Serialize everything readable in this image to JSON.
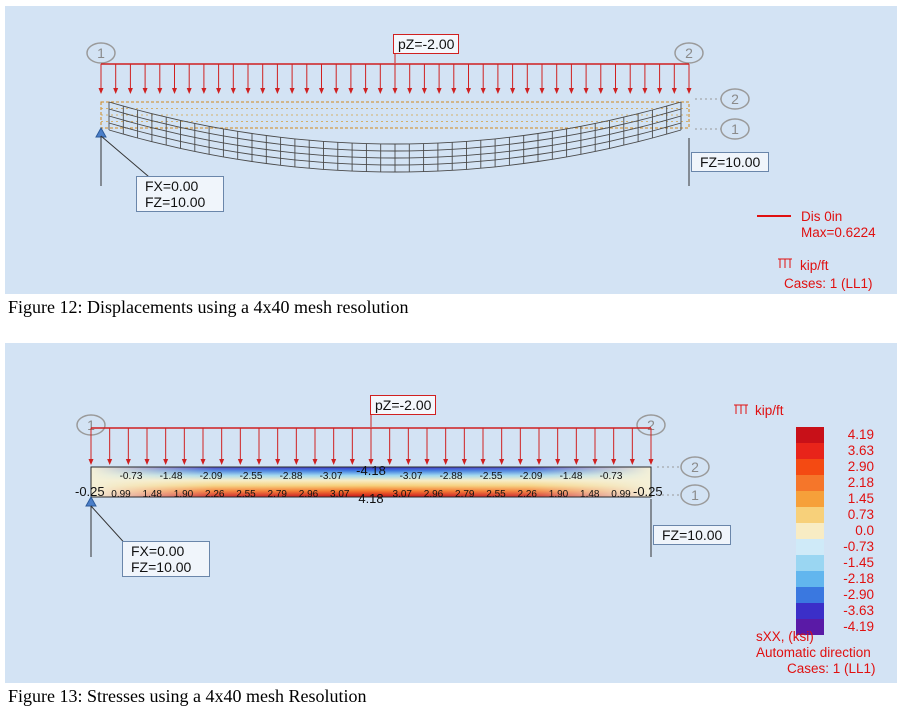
{
  "figure12": {
    "caption": "Figure 12: Displacements using a 4x40 mesh resolution",
    "load_label": "pZ=-2.00",
    "support_left": {
      "fx": "FX=0.00",
      "fz": "FZ=10.00"
    },
    "support_right": {
      "fz": "FZ=10.00"
    },
    "nodes": {
      "left": "1",
      "right": "2",
      "side_top": "2",
      "side_bottom": "1"
    },
    "legend": {
      "name": "Dis  0in",
      "max": "Max=0.6224",
      "unit": "kip/ft",
      "cases": "Cases: 1 (LL1)"
    }
  },
  "figure13": {
    "caption": "Figure 13: Stresses using a 4x40 mesh Resolution",
    "load_label": "pZ=-2.00",
    "unit": "kip/ft",
    "support_left": {
      "fx": "FX=0.00",
      "fz": "FZ=10.00"
    },
    "support_right": {
      "fz": "FZ=10.00"
    },
    "nodes": {
      "left": "1",
      "right": "2",
      "side_top": "2",
      "side_bottom": "1"
    },
    "end_left": "-0.25",
    "end_right": "-0.25",
    "top_values": [
      "-0.73",
      "-1.48",
      "-2.09",
      "-2.55",
      "-2.88",
      "-3.07",
      "-4.18",
      "-3.07",
      "-2.88",
      "-2.55",
      "-2.09",
      "-1.48",
      "-0.73"
    ],
    "bottom_values": [
      "0.99",
      "1.48",
      "1.90",
      "2.26",
      "2.55",
      "2.79",
      "2.96",
      "3.07",
      "4.18",
      "3.07",
      "2.96",
      "2.79",
      "2.55",
      "2.26",
      "1.90",
      "1.48",
      "0.99"
    ],
    "scale": {
      "values": [
        "4.19",
        "3.63",
        "2.90",
        "2.18",
        "1.45",
        "0.73",
        "0.0",
        "-0.73",
        "-1.45",
        "-2.18",
        "-2.90",
        "-3.63",
        "-4.19"
      ],
      "colors": [
        "#c81018",
        "#e8241a",
        "#f44a12",
        "#f5762a",
        "#f6a03a",
        "#f7d07a",
        "#f8ecc4",
        "#cfeaf8",
        "#9ad6f2",
        "#62b6ee",
        "#3a78e0",
        "#3b2fc8",
        "#5a1aa6"
      ],
      "title": "sXX, (ksi)",
      "direction": "Automatic direction",
      "cases": "Cases: 1 (LL1)"
    }
  }
}
